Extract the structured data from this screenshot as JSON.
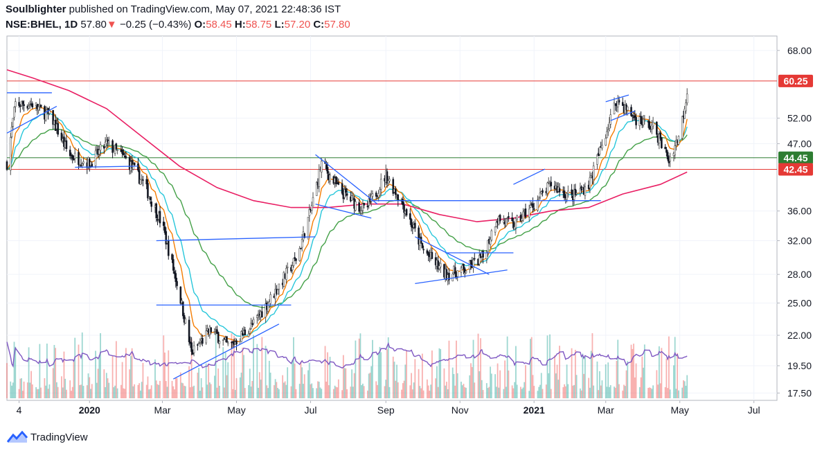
{
  "header": {
    "author": "Soulblighter",
    "published_text": "published on TradingView.com, May 07, 2021 22:48:36 IST",
    "symbol": "NSE:BHEL, 1D",
    "last": "57.80",
    "change": "−0.25 (−0.43%)",
    "o_label": "O:",
    "o_value": "58.45",
    "h_label": "H:",
    "h_value": "58.75",
    "l_label": "L:",
    "l_value": "57.20",
    "c_label": "C:",
    "c_value": "57.80"
  },
  "footer": {
    "brand": "TradingView"
  },
  "colors": {
    "up": "#26a69a",
    "down": "#ef5350",
    "ema_fast": "#f57c00",
    "ema_mid": "#26c6da",
    "ema_slow": "#43a047",
    "ema_long": "#e91e63",
    "trendline": "#2962ff",
    "volume_ma": "#7e57c2",
    "level_green": "#2e7d32",
    "level_red": "#e53935"
  },
  "chart_data": {
    "type": "candlestick",
    "y_scale": "log",
    "ylim": [
      17,
      72
    ],
    "y_ticks": [
      "17.50",
      "19.50",
      "22.00",
      "25.00",
      "28.00",
      "32.00",
      "36.00",
      "47.00",
      "52.00",
      "68.00"
    ],
    "x_ticks": [
      {
        "label": "4",
        "date": "2019-11-04",
        "bold": false
      },
      {
        "label": "2020",
        "date": "2020-01-01",
        "bold": true
      },
      {
        "label": "Mar",
        "date": "2020-03-01",
        "bold": false
      },
      {
        "label": "May",
        "date": "2020-05-01",
        "bold": false
      },
      {
        "label": "Jul",
        "date": "2020-07-01",
        "bold": false
      },
      {
        "label": "Sep",
        "date": "2020-09-01",
        "bold": false
      },
      {
        "label": "Nov",
        "date": "2020-11-01",
        "bold": false
      },
      {
        "label": "2021",
        "date": "2021-01-01",
        "bold": true
      },
      {
        "label": "Mar",
        "date": "2021-03-01",
        "bold": false
      },
      {
        "label": "May",
        "date": "2021-05-01",
        "bold": false
      },
      {
        "label": "Jul",
        "date": "2021-07-01",
        "bold": false
      }
    ],
    "xlim": [
      "2019-10-25",
      "2021-07-20"
    ],
    "price_path": [
      [
        "2019-10-25",
        43.5
      ],
      [
        "2019-11-01",
        55
      ],
      [
        "2019-11-15",
        55
      ],
      [
        "2019-12-01",
        52
      ],
      [
        "2019-12-15",
        45
      ],
      [
        "2020-01-01",
        43.5
      ],
      [
        "2020-01-15",
        47
      ],
      [
        "2020-02-01",
        44
      ],
      [
        "2020-02-15",
        40
      ],
      [
        "2020-03-01",
        34
      ],
      [
        "2020-03-15",
        26
      ],
      [
        "2020-03-25",
        20.5
      ],
      [
        "2020-04-10",
        22.5
      ],
      [
        "2020-04-25",
        21
      ],
      [
        "2020-05-15",
        23
      ],
      [
        "2020-06-01",
        26
      ],
      [
        "2020-06-20",
        30
      ],
      [
        "2020-07-01",
        36
      ],
      [
        "2020-07-10",
        43.5
      ],
      [
        "2020-07-25",
        39
      ],
      [
        "2020-08-15",
        36
      ],
      [
        "2020-09-01",
        41.5
      ],
      [
        "2020-09-15",
        37
      ],
      [
        "2020-10-01",
        31
      ],
      [
        "2020-10-20",
        28
      ],
      [
        "2020-11-05",
        28.5
      ],
      [
        "2020-11-20",
        30
      ],
      [
        "2020-12-01",
        35
      ],
      [
        "2020-12-15",
        34
      ],
      [
        "2021-01-01",
        37
      ],
      [
        "2021-01-15",
        40
      ],
      [
        "2021-02-01",
        38
      ],
      [
        "2021-02-15",
        40
      ],
      [
        "2021-03-01",
        49
      ],
      [
        "2021-03-10",
        56
      ],
      [
        "2021-03-25",
        52
      ],
      [
        "2021-04-10",
        50
      ],
      [
        "2021-04-22",
        44
      ],
      [
        "2021-05-01",
        49
      ],
      [
        "2021-05-07",
        57.8
      ]
    ],
    "levels": [
      {
        "label": "60.25",
        "value": 60.25,
        "color": "#e53935"
      },
      {
        "label": "44.45",
        "value": 44.45,
        "color": "#2e7d32"
      },
      {
        "label": "42.45",
        "value": 42.45,
        "color": "#e53935"
      }
    ],
    "trendlines": [
      {
        "points": [
          [
            "2019-10-25",
            57.5
          ],
          [
            "2019-12-01",
            57.5
          ]
        ]
      },
      {
        "points": [
          [
            "2019-10-25",
            49
          ],
          [
            "2019-12-05",
            54.5
          ]
        ]
      },
      {
        "points": [
          [
            "2019-12-20",
            42.8
          ],
          [
            "2020-02-10",
            43
          ]
        ]
      },
      {
        "points": [
          [
            "2020-02-25",
            32
          ],
          [
            "2020-07-05",
            32.5
          ]
        ]
      },
      {
        "points": [
          [
            "2020-02-25",
            24.8
          ],
          [
            "2020-06-15",
            24.8
          ]
        ]
      },
      {
        "points": [
          [
            "2020-03-10",
            18.5
          ],
          [
            "2020-06-05",
            23
          ]
        ]
      },
      {
        "points": [
          [
            "2020-07-05",
            45
          ],
          [
            "2020-08-25",
            37
          ]
        ]
      },
      {
        "points": [
          [
            "2020-07-05",
            37
          ],
          [
            "2020-08-20",
            35
          ]
        ]
      },
      {
        "points": [
          [
            "2020-08-20",
            37.5
          ],
          [
            "2021-02-25",
            37.5
          ]
        ]
      },
      {
        "points": [
          [
            "2020-09-25",
            32.5
          ],
          [
            "2020-11-25",
            28
          ]
        ]
      },
      {
        "points": [
          [
            "2020-09-25",
            27
          ],
          [
            "2020-12-10",
            28.5
          ]
        ]
      },
      {
        "points": [
          [
            "2020-10-20",
            30.5
          ],
          [
            "2020-12-15",
            30.5
          ]
        ]
      },
      {
        "points": [
          [
            "2020-12-15",
            40
          ],
          [
            "2021-01-10",
            42.5
          ]
        ]
      },
      {
        "points": [
          [
            "2021-03-01",
            55.5
          ],
          [
            "2021-03-20",
            57
          ]
        ]
      },
      {
        "points": [
          [
            "2021-03-05",
            51.5
          ],
          [
            "2021-03-25",
            53.5
          ]
        ]
      }
    ],
    "ema_long_path": [
      [
        "2019-10-25",
        63
      ],
      [
        "2019-11-15",
        61
      ],
      [
        "2019-12-15",
        58
      ],
      [
        "2020-01-15",
        54
      ],
      [
        "2020-02-15",
        48
      ],
      [
        "2020-03-15",
        43
      ],
      [
        "2020-04-15",
        39.5
      ],
      [
        "2020-05-15",
        37.5
      ],
      [
        "2020-06-15",
        36.5
      ],
      [
        "2020-07-15",
        36.5
      ],
      [
        "2020-08-15",
        37
      ],
      [
        "2020-09-15",
        37
      ],
      [
        "2020-10-15",
        35.5
      ],
      [
        "2020-11-15",
        34.5
      ],
      [
        "2020-12-15",
        35
      ],
      [
        "2021-01-15",
        36
      ],
      [
        "2021-02-15",
        36.5
      ],
      [
        "2021-03-15",
        38.5
      ],
      [
        "2021-04-15",
        40
      ],
      [
        "2021-05-07",
        42
      ]
    ]
  }
}
